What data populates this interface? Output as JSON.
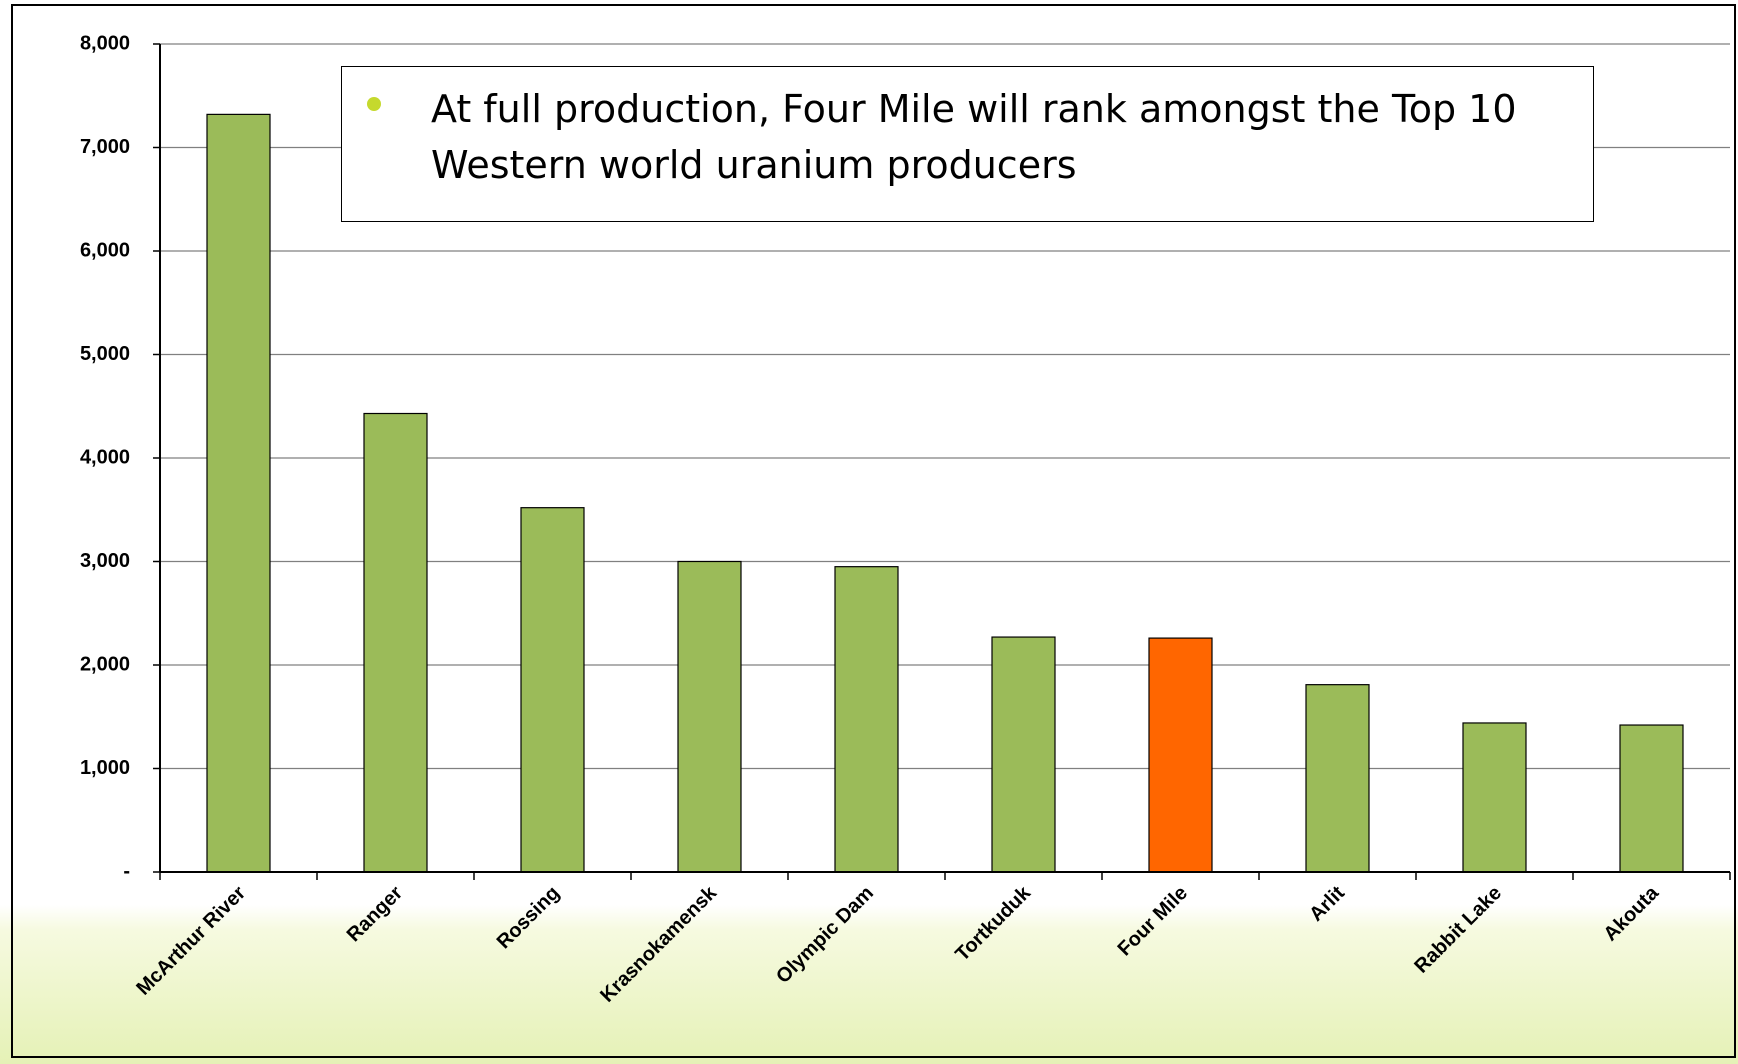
{
  "callout": {
    "text": "At full production, Four Mile will rank amongst the Top 10 Western world uranium producers"
  },
  "colors": {
    "bar_default": "#9bbb59",
    "bar_highlight": "#ff6600",
    "bullet": "#c5d92d",
    "gridline": "#808080",
    "background_gradient_end": "#e5f1b6"
  },
  "chart_data": {
    "type": "bar",
    "title": "",
    "xlabel": "",
    "ylabel": "",
    "categories": [
      "McArthur River",
      "Ranger",
      "Rossing",
      "Krasnokamensk",
      "Olympic Dam",
      "Tortkuduk",
      "Four Mile",
      "Arlit",
      "Rabbit Lake",
      "Akouta"
    ],
    "values": [
      7320,
      4430,
      3520,
      3000,
      2950,
      2270,
      2260,
      1810,
      1440,
      1420
    ],
    "highlight": "Four Mile",
    "ylim": [
      0,
      8000
    ],
    "yticks": [
      0,
      1000,
      2000,
      3000,
      4000,
      5000,
      6000,
      7000,
      8000
    ],
    "ytick_labels": [
      "-",
      "1,000",
      "2,000",
      "3,000",
      "4,000",
      "5,000",
      "6,000",
      "7,000",
      "8,000"
    ],
    "grid": true,
    "legend": "none"
  }
}
